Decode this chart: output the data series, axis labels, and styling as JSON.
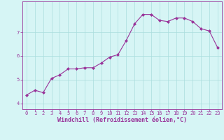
{
  "x": [
    0,
    1,
    2,
    3,
    4,
    5,
    6,
    7,
    8,
    9,
    10,
    11,
    12,
    13,
    14,
    15,
    16,
    17,
    18,
    19,
    20,
    21,
    22,
    23
  ],
  "y": [
    4.35,
    4.55,
    4.45,
    5.05,
    5.2,
    5.45,
    5.45,
    5.5,
    5.5,
    5.7,
    5.95,
    6.05,
    6.65,
    7.35,
    7.75,
    7.75,
    7.5,
    7.45,
    7.6,
    7.6,
    7.45,
    7.15,
    7.05,
    6.35
  ],
  "line_color": "#993399",
  "marker": "D",
  "markersize": 2.0,
  "linewidth": 0.8,
  "xlabel": "Windchill (Refroidissement éolien,°C)",
  "ylabel": "",
  "title": "",
  "xlim": [
    -0.5,
    23.5
  ],
  "ylim": [
    3.75,
    8.3
  ],
  "yticks": [
    4,
    5,
    6,
    7
  ],
  "xticks": [
    0,
    1,
    2,
    3,
    4,
    5,
    6,
    7,
    8,
    9,
    10,
    11,
    12,
    13,
    14,
    15,
    16,
    17,
    18,
    19,
    20,
    21,
    22,
    23
  ],
  "background_color": "#d6f5f5",
  "grid_color": "#aadddd",
  "tick_color": "#993399",
  "label_color": "#993399",
  "font_size": 5.0,
  "xlabel_fontsize": 6.0
}
